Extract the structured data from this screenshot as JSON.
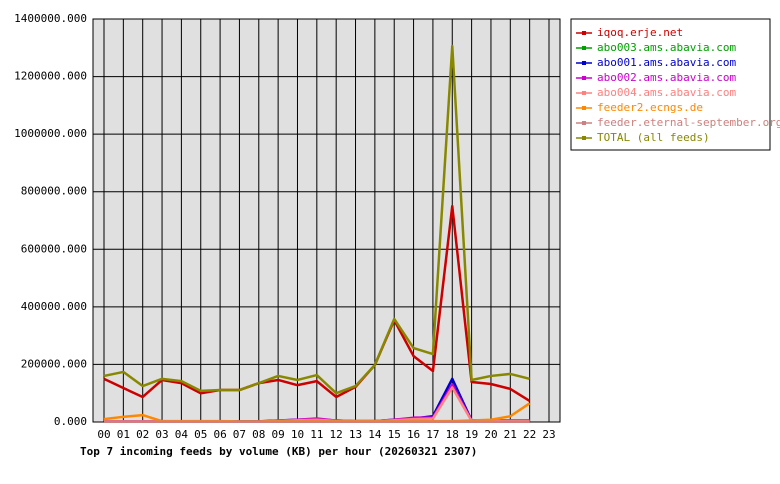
{
  "chart_data": {
    "type": "line",
    "title": "Top 7 incoming feeds by volume (KB) per hour (20260321 2307)",
    "categories": [
      "00",
      "01",
      "02",
      "03",
      "04",
      "05",
      "06",
      "07",
      "08",
      "09",
      "10",
      "11",
      "12",
      "13",
      "14",
      "15",
      "16",
      "17",
      "18",
      "19",
      "20",
      "21",
      "22",
      "23"
    ],
    "ylim": [
      0,
      1400000
    ],
    "yticks": [
      {
        "value": 0,
        "label": "0.000"
      },
      {
        "value": 200000,
        "label": "200000.000"
      },
      {
        "value": 400000,
        "label": "400000.000"
      },
      {
        "value": 600000,
        "label": "600000.000"
      },
      {
        "value": 800000,
        "label": "800000.000"
      },
      {
        "value": 1000000,
        "label": "1000000.000"
      },
      {
        "value": 1200000,
        "label": "1200000.000"
      },
      {
        "value": 1400000,
        "label": "1400000.000"
      }
    ],
    "grid": true,
    "legend": "right",
    "series": [
      {
        "name": "iqoq.erje.net",
        "color": "#cc0000",
        "values": [
          150000,
          118000,
          87000,
          146000,
          135000,
          100000,
          111000,
          111000,
          135000,
          146000,
          128000,
          142000,
          87000,
          122000,
          198000,
          354000,
          229000,
          177000,
          750000,
          139000,
          132000,
          115000,
          73000,
          null
        ]
      },
      {
        "name": "abo003.ams.abavia.com",
        "color": "#00a000",
        "values": [
          1000,
          1000,
          1000,
          1000,
          1000,
          1000,
          1000,
          1000,
          1000,
          1000,
          1000,
          1000,
          1000,
          1000,
          1000,
          1000,
          1000,
          1000,
          1000,
          1000,
          1000,
          1000,
          1000,
          null
        ]
      },
      {
        "name": "abo001.ams.abavia.com",
        "color": "#0000cc",
        "values": [
          2000,
          2000,
          2000,
          2000,
          2000,
          2000,
          2000,
          2000,
          2000,
          5000,
          8000,
          10000,
          5000,
          3000,
          3000,
          8000,
          12000,
          20000,
          150000,
          5000,
          5000,
          5000,
          5000,
          null
        ]
      },
      {
        "name": "abo002.ams.abavia.com",
        "color": "#cc00cc",
        "values": [
          2000,
          2000,
          2000,
          2000,
          2000,
          2000,
          2000,
          1000,
          1000,
          5000,
          8000,
          12000,
          5000,
          3000,
          3000,
          8000,
          15000,
          15000,
          130000,
          5000,
          5000,
          5000,
          5000,
          null
        ]
      },
      {
        "name": "abo004.ams.abavia.com",
        "color": "#ff8080",
        "values": [
          2000,
          2000,
          2000,
          2000,
          2000,
          2000,
          2000,
          1000,
          1000,
          4000,
          6000,
          8000,
          4000,
          3000,
          3000,
          6000,
          10000,
          12000,
          120000,
          4000,
          4000,
          4000,
          4000,
          null
        ]
      },
      {
        "name": "feeder2.ecngs.de",
        "color": "#ff8800",
        "values": [
          10000,
          18000,
          24000,
          3000,
          3000,
          3000,
          3000,
          2000,
          2000,
          3000,
          3000,
          3000,
          3000,
          3000,
          3000,
          3000,
          3000,
          3000,
          3000,
          5000,
          8000,
          20000,
          65000,
          null
        ]
      },
      {
        "name": "feeder.eternal-september.org",
        "color": "#cc8080",
        "values": [
          1000,
          1000,
          1000,
          1000,
          1000,
          1000,
          1000,
          1000,
          1000,
          1000,
          1000,
          1000,
          1000,
          1000,
          1000,
          1000,
          1000,
          1000,
          1000,
          1000,
          1000,
          1000,
          1000,
          null
        ]
      },
      {
        "name": "TOTAL (all feeds)",
        "color": "#888800",
        "values": [
          160000,
          174000,
          125000,
          150000,
          142000,
          108000,
          111000,
          111000,
          135000,
          160000,
          146000,
          163000,
          100000,
          125000,
          198000,
          358000,
          257000,
          236000,
          1306000,
          146000,
          160000,
          167000,
          150000,
          null
        ]
      }
    ]
  }
}
